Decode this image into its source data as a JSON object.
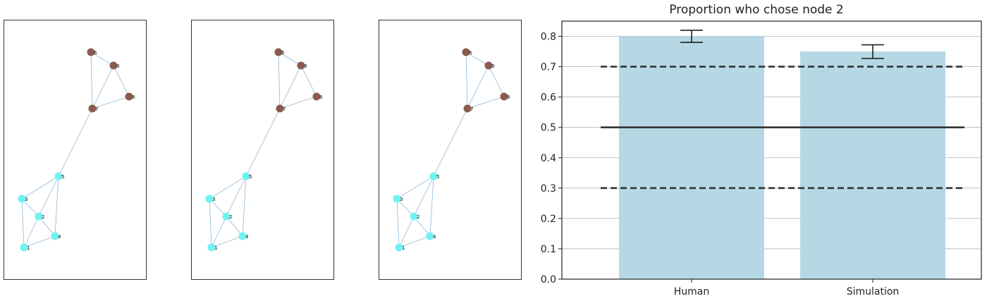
{
  "graph_panels": [
    {
      "id": "graph-panel-1"
    },
    {
      "id": "graph-panel-2"
    },
    {
      "id": "graph-panel-3"
    }
  ],
  "graph": {
    "node_colors": {
      "cluster_a": "#6ff2f2",
      "cluster_b": "#8b5a4f"
    },
    "edge_color": "#8fb8d8",
    "nodes": [
      {
        "id": "1",
        "label": "1",
        "cluster": "cluster_a"
      },
      {
        "id": "2",
        "label": "2",
        "cluster": "cluster_a"
      },
      {
        "id": "3",
        "label": "3",
        "cluster": "cluster_a"
      },
      {
        "id": "4",
        "label": "4",
        "cluster": "cluster_a"
      },
      {
        "id": "5",
        "label": "5",
        "cluster": "cluster_a"
      },
      {
        "id": "6",
        "label": "6",
        "cluster": "cluster_b"
      },
      {
        "id": "7",
        "label": "7",
        "cluster": "cluster_b"
      },
      {
        "id": "8",
        "label": "8",
        "cluster": "cluster_b"
      },
      {
        "id": "9",
        "label": "9",
        "cluster": "cluster_b"
      }
    ],
    "edges": [
      [
        "1",
        "3"
      ],
      [
        "1",
        "2"
      ],
      [
        "1",
        "4"
      ],
      [
        "3",
        "2"
      ],
      [
        "3",
        "5"
      ],
      [
        "2",
        "4"
      ],
      [
        "2",
        "5"
      ],
      [
        "4",
        "5"
      ],
      [
        "5",
        "7"
      ],
      [
        "7",
        "6"
      ],
      [
        "7",
        "9"
      ],
      [
        "7",
        "8"
      ],
      [
        "6",
        "9"
      ],
      [
        "9",
        "8"
      ]
    ]
  },
  "chart_data": {
    "type": "bar",
    "title": "Proportion who chose node 2",
    "categories": [
      "Human",
      "Simulation"
    ],
    "values": [
      0.8,
      0.75
    ],
    "error_bars": [
      [
        0.78,
        0.82
      ],
      [
        0.727,
        0.772
      ]
    ],
    "ylim": [
      0.0,
      0.85
    ],
    "yticks": [
      "0.0",
      "0.1",
      "0.2",
      "0.3",
      "0.4",
      "0.5",
      "0.6",
      "0.7",
      "0.8"
    ],
    "grid": "horizontal",
    "bar_color": "#b5d8e4",
    "reference_lines": [
      {
        "y": 0.5,
        "style": "solid"
      },
      {
        "y": 0.7,
        "style": "dashed"
      },
      {
        "y": 0.3,
        "style": "dashed"
      }
    ]
  }
}
